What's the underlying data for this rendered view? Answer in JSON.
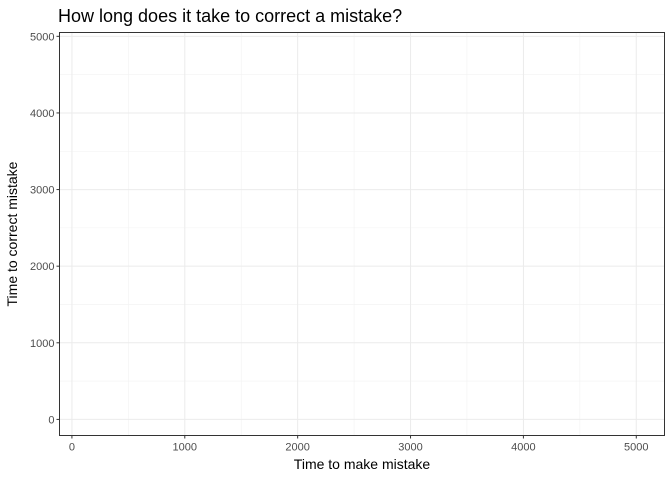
{
  "chart_data": {
    "type": "scatter",
    "title": "How long does it take to correct a mistake?",
    "xlabel": "Time to make mistake",
    "ylabel": "Time to correct mistake",
    "xlim": [
      -110,
      5250
    ],
    "ylim": [
      -210,
      5050
    ],
    "x_ticks": [
      0,
      1000,
      2000,
      3000,
      4000,
      5000
    ],
    "y_ticks": [
      0,
      1000,
      2000,
      3000,
      4000,
      5000
    ],
    "x_minor": [
      500,
      1500,
      2500,
      3500,
      4500
    ],
    "y_minor": [
      500,
      1500,
      2500,
      3500,
      4500
    ],
    "grid": true,
    "series": [
      {
        "x": [],
        "y": []
      }
    ]
  }
}
